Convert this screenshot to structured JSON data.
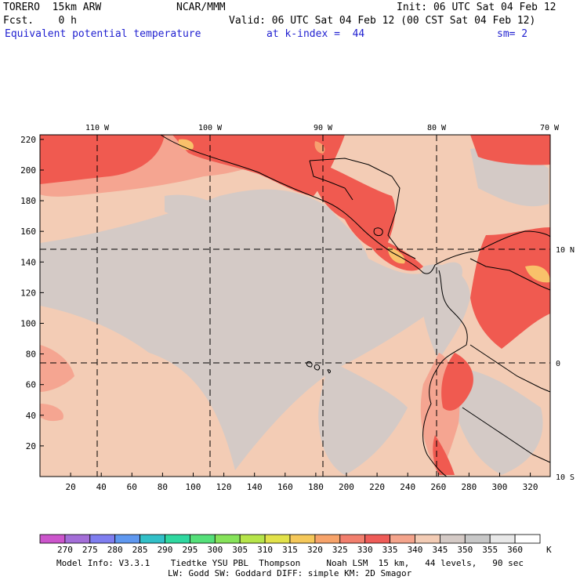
{
  "header": {
    "model": "TORERO  15km ARW",
    "org": "NCAR/MMM",
    "init": "Init: 06 UTC Sat 04 Feb 12",
    "fcst": "Fcst.    0 h",
    "valid": "Valid: 06 UTC Sat 04 Feb 12 (00 CST Sat 04 Feb 12)",
    "field": "Equivalent potential temperature",
    "level": "at k-index =  44",
    "smooth": "sm= 2"
  },
  "map": {
    "lon_labels": [
      "110 W",
      "100 W",
      "90 W",
      "80 W",
      "70 W"
    ],
    "lat_labels": [
      "10 N",
      "0",
      "10 S"
    ],
    "y_ticks": [
      "20",
      "40",
      "60",
      "80",
      "100",
      "120",
      "140",
      "160",
      "180",
      "200",
      "220"
    ],
    "x_ticks": [
      "20",
      "40",
      "60",
      "80",
      "100",
      "120",
      "140",
      "160",
      "180",
      "200",
      "220",
      "240",
      "260",
      "280",
      "300",
      "320"
    ],
    "colors": {
      "c330": "#f05a50",
      "c335": "#f47c72",
      "c340": "#f5a591",
      "c345": "#f3ccb5",
      "c350": "#d4cac6",
      "c355": "#d0d0d0",
      "c325": "#f7a070",
      "c320": "#f9c16a"
    }
  },
  "colorbar": {
    "unit": "K",
    "levels": [
      "270",
      "275",
      "280",
      "285",
      "290",
      "295",
      "300",
      "305",
      "310",
      "315",
      "320",
      "325",
      "330",
      "335",
      "340",
      "345",
      "350",
      "355",
      "360"
    ],
    "colors": [
      "#cc55cc",
      "#a46ed8",
      "#7f7ef0",
      "#5f98f0",
      "#32c0c8",
      "#2fd8a0",
      "#55e07a",
      "#86e35a",
      "#b6e54a",
      "#e2e24a",
      "#f5c85a",
      "#f7a36a",
      "#f27f6e",
      "#ef5c58",
      "#f4a48c",
      "#f3ccb5",
      "#d4cac6",
      "#c8c8c8",
      "#e8e8e8",
      "#ffffff"
    ]
  },
  "footer": {
    "line1": "Model Info: V3.3.1    Tiedtke YSU PBL  Thompson     Noah LSM  15 km,   44 levels,   90 sec",
    "line2": "LW: Godd SW: Goddard DIFF: simple KM: 2D Smagor"
  }
}
